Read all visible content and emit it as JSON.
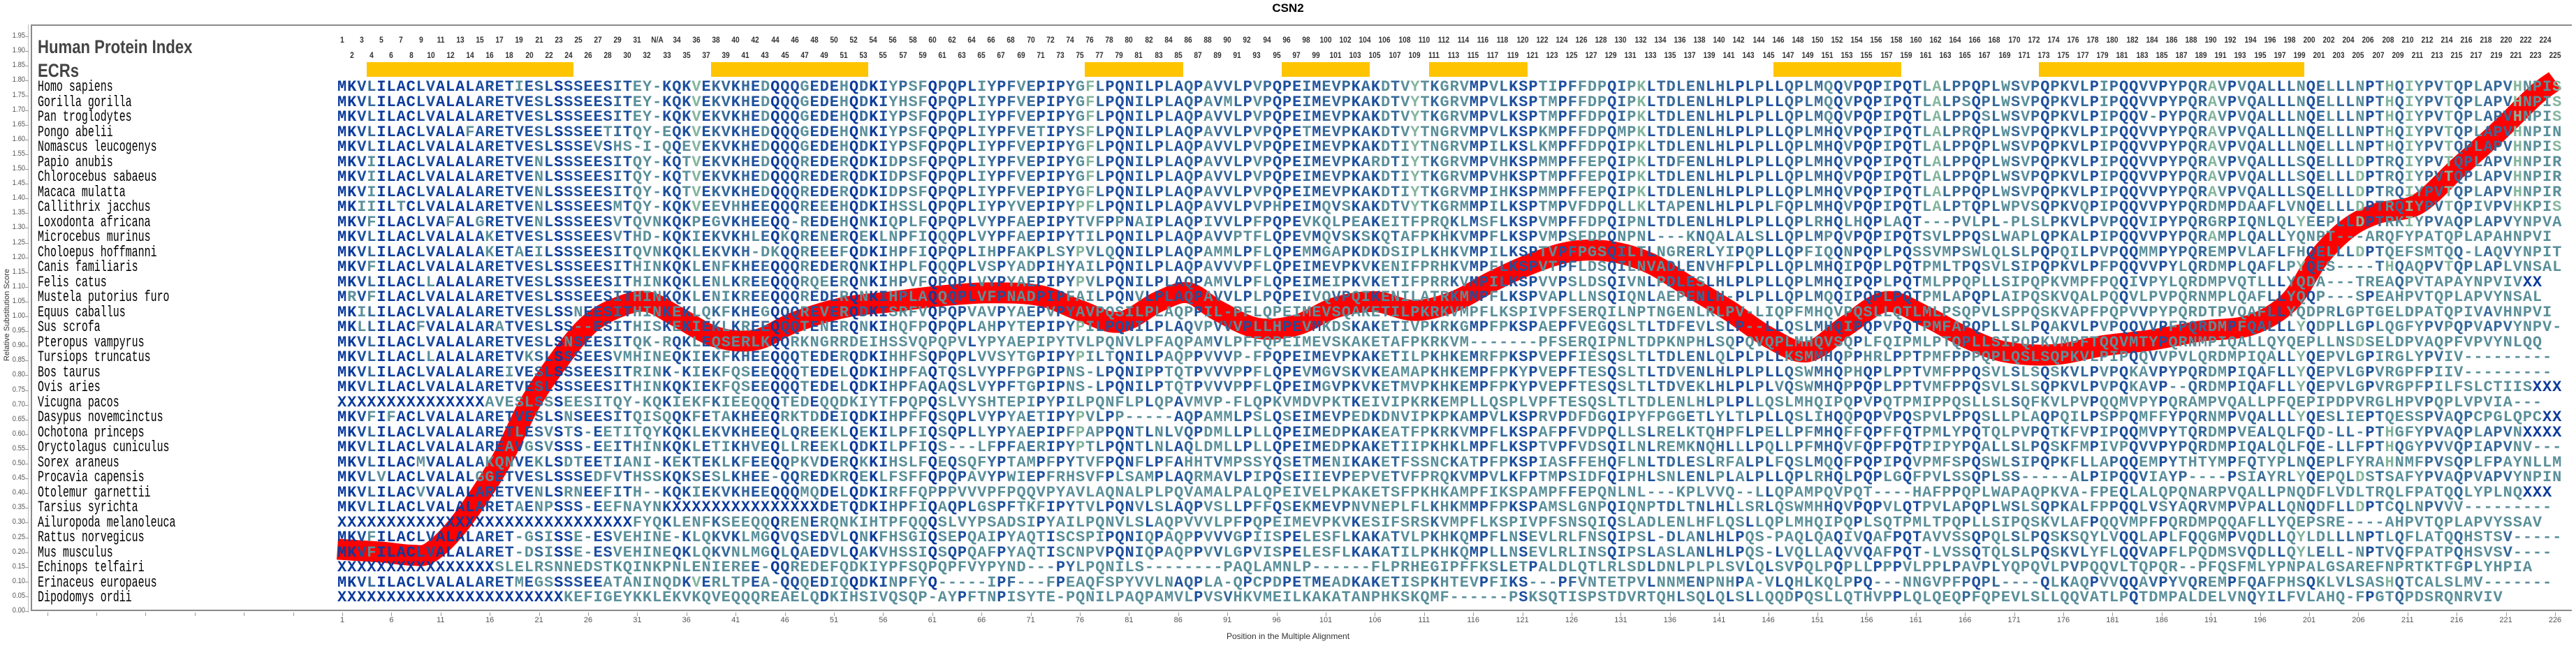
{
  "chart_data": {
    "type": "line",
    "title": "CSN2",
    "xlabel": "Position in the Multiple Alignment",
    "ylabel": "Relative Substitution Score",
    "ylim": [
      0,
      1.95
    ],
    "xlim": [
      1,
      226
    ],
    "grid": false,
    "yticks": [
      "0.00",
      "0.05",
      "0.10",
      "0.15",
      "0.20",
      "0.25",
      "0.30",
      "0.35",
      "0.40",
      "0.45",
      "0.50",
      "0.55",
      "0.60",
      "0.65",
      "0.70",
      "0.75",
      "0.80",
      "0.85",
      "0.90",
      "0.95",
      "1.00",
      "1.05",
      "1.10",
      "1.15",
      "1.20",
      "1.25",
      "1.30",
      "1.35",
      "1.40",
      "1.45",
      "1.50",
      "1.55",
      "1.60",
      "1.65",
      "1.70",
      "1.75",
      "1.80",
      "1.85",
      "1.90",
      "1.95"
    ],
    "xticks": [
      "1",
      "6",
      "11",
      "16",
      "21",
      "26",
      "31",
      "36",
      "41",
      "46",
      "51",
      "56",
      "61",
      "66",
      "71",
      "76",
      "81",
      "86",
      "91",
      "96",
      "101",
      "106",
      "111",
      "116",
      "121",
      "126",
      "131",
      "136",
      "141",
      "146",
      "151",
      "156",
      "161",
      "166",
      "171",
      "176",
      "181",
      "186",
      "191",
      "196",
      "201",
      "206",
      "211",
      "216",
      "221",
      "226"
    ],
    "series": [
      {
        "name": "Relative Substitution Score",
        "color": "#ff0000",
        "x": [
          1,
          5,
          8,
          10,
          13,
          17,
          20,
          23,
          26,
          29,
          32,
          35,
          39,
          43,
          47,
          52,
          57,
          62,
          67,
          72,
          76,
          80,
          84,
          87,
          90,
          94,
          98,
          102,
          106,
          110,
          114,
          118,
          122,
          126,
          130,
          134,
          138,
          142,
          146,
          150,
          154,
          158,
          162,
          166,
          170,
          175,
          180,
          185,
          190,
          195,
          199,
          202,
          205,
          208,
          212,
          216,
          220,
          224,
          226
        ],
        "y": [
          0.21,
          0.2,
          0.19,
          0.2,
          0.3,
          0.5,
          0.7,
          0.85,
          0.97,
          1.03,
          1.05,
          1.0,
          0.93,
          0.92,
          0.98,
          1.03,
          1.05,
          1.07,
          1.08,
          1.07,
          1.02,
          0.98,
          1.05,
          1.08,
          1.02,
          0.96,
          0.97,
          1.03,
          1.05,
          1.02,
          1.05,
          1.12,
          1.18,
          1.22,
          1.22,
          1.18,
          1.1,
          1.02,
          0.93,
          0.88,
          0.97,
          1.05,
          1.0,
          0.93,
          0.88,
          0.87,
          0.9,
          0.92,
          0.95,
          0.97,
          1.05,
          1.2,
          1.3,
          1.35,
          1.38,
          1.5,
          1.62,
          1.75,
          1.8
        ]
      }
    ]
  },
  "header": {
    "protein_index_label": "Human Protein Index",
    "ecr_label": "ECRs",
    "index_labels": [
      "1",
      "2",
      "3",
      "4",
      "5",
      "6",
      "7",
      "8",
      "9",
      "10",
      "11",
      "12",
      "13",
      "14",
      "15",
      "16",
      "17",
      "18",
      "19",
      "20",
      "21",
      "22",
      "23",
      "24",
      "25",
      "26",
      "27",
      "28",
      "29",
      "30",
      "31",
      "32",
      "N/A",
      "33",
      "34",
      "35",
      "36",
      "37",
      "38",
      "39",
      "40",
      "41",
      "42",
      "43",
      "44",
      "45",
      "46",
      "47",
      "48",
      "49",
      "50",
      "51",
      "52",
      "53",
      "54",
      "55",
      "56",
      "57",
      "58",
      "59",
      "60",
      "61",
      "62",
      "63",
      "64",
      "65",
      "66",
      "67",
      "68",
      "69",
      "70",
      "71",
      "72",
      "73",
      "74",
      "75",
      "76",
      "77",
      "78",
      "79",
      "80",
      "81",
      "82",
      "83",
      "84",
      "85",
      "86",
      "87",
      "88",
      "89",
      "90",
      "91",
      "92",
      "93",
      "94",
      "95",
      "96",
      "97",
      "98",
      "99",
      "100",
      "101",
      "102",
      "103",
      "104",
      "105",
      "106",
      "107",
      "108",
      "109",
      "110",
      "111",
      "112",
      "113",
      "114",
      "115",
      "116",
      "117",
      "118",
      "119",
      "120",
      "121",
      "122",
      "123",
      "124",
      "125",
      "126",
      "127",
      "128",
      "129",
      "130",
      "131",
      "132",
      "133",
      "134",
      "135",
      "136",
      "137",
      "138",
      "139",
      "140",
      "141",
      "142",
      "143",
      "144",
      "145",
      "146",
      "147",
      "148",
      "149",
      "150",
      "151",
      "152",
      "153",
      "154",
      "155",
      "156",
      "157",
      "158",
      "159",
      "160",
      "161",
      "162",
      "163",
      "164",
      "165",
      "166",
      "167",
      "168",
      "169",
      "170",
      "171",
      "172",
      "173",
      "174",
      "175",
      "176",
      "177",
      "178",
      "179",
      "180",
      "181",
      "182",
      "183",
      "184",
      "185",
      "186",
      "187",
      "188",
      "189",
      "190",
      "191",
      "192",
      "193",
      "194",
      "195",
      "196",
      "197",
      "198",
      "199",
      "200",
      "201",
      "202",
      "203",
      "204",
      "205",
      "206",
      "207",
      "208",
      "209",
      "210",
      "211",
      "212",
      "213",
      "214",
      "215",
      "216",
      "217",
      "218",
      "219",
      "220",
      "221",
      "222",
      "223",
      "224",
      "225"
    ],
    "ecrs": [
      [
        4,
        24
      ],
      [
        39,
        54
      ],
      [
        77,
        86
      ],
      [
        97,
        105
      ],
      [
        112,
        121
      ],
      [
        147,
        159
      ],
      [
        174,
        200
      ]
    ],
    "ecr_color": "#ffc400"
  },
  "alignment": [
    {
      "species": "Homo sapiens",
      "seq": "MKVLILACLVALALARETIESLSSSEESITEY-KQKVEKVKHEDQQQGEDEHQDKIYPSFQPQPLIYPFVEPIPYGFLPQNILPLAQPAVVLPVPQPEIMEVPKAKDTVYTKGRVMPVLKSPTIPFFDPQIPKLTDLENLHLPLPLLQPLMQQVPQPIPQTLALPPQPLWSVPQPKVLPIPQQVVPYPQRAVPVQALLLNQELLLNPTHQIYPVTQPLAPVHNPIS"
    },
    {
      "species": "Gorilla gorilla",
      "seq": "MKVLILACLVALALARETVESLSSSEESITEY-KQKVEKVKHEDQQQGEDEHQDKIYHSFQPQPLIYPFVEPIPYGFLPQNILPLAQPAVMLPVPQPEIMEVPKAKDTVYTKGRVMPVLKSPTMPFFDPQIPKLTDLENLHLPLPLLQPLMQQVPQPIPQTLALPSQPLWSVPQPKVLPIPQQVVPYPQRAVPVQALLLNQELLLNPTHQIYPVTQPLAPVHNPIS"
    },
    {
      "species": "Pan troglodytes",
      "seq": "MKVLILACLVALALARETVESLSSSEESITEY-KQKVEKVKHEDQQQGEDEHQDKIYPSFQPQPLIYPFVEPIPYGFLPQNILPLAQPAVVLPVPQPEIMEVPKAKDTVYTKGRVMPVLKSPTMPFFDPQIPKLTDLENLHLPLPLLQPLMQQVPQPIPQTLALPPQSLWSVPQPKVLPIPQQV-PYPQRAVPVQALLLNQELLLNPTHQIYPVTQPLAPVHNPIS"
    },
    {
      "species": "Pongo abelii",
      "seq": "MKVLILACLVALAFARETVESLSSSEETITQY-EQKVEKVKHEDQQQGEDEHQNKIYPSFQPQPLIYPFVETIPYSFLPQNILPLAQPAVVLPVPQPETMEVPKAKDTVYTNGRVMPVLKSPKMPFFDPQMPKLTDLENLHLPLPLLQPLMHQVPQPIPQTLALPRQPLWSVPQPKVLPIPQQVVPYPQRAVPVQALLLNQELLLNPTHQIYPVTQPLAPVHNPIN"
    },
    {
      "species": "Nomascus leucogenys",
      "seq": "MKVLILACLVALALARETVESLSSSEVSHS-I-QQEVEKVKHEDQQQGEDEHQDKIYPSFQPQPLIYPFVEPIPYGFLPQNILPLAQPAVVLPVPQPEIMEVPKAKDTIYTNGRVMPILKSLKMPFFDPQIPKLTDLENLHLPLPLLQPLMHQVPQPIPQTLALPPQPLWSVPQPKVLPIPQQVVPYPQRAVPVQALLLNQELLLNPTHQIYPVTQPLAPVHNPIS"
    },
    {
      "species": "Papio anubis",
      "seq": "MKVIILACLVALALARETVENLSSSEESITQY-KQTVEKVKHEDQQQREDERQDKIDPSFQPQPLIYPFVEPIPYGFLPQNILPLAQPAVVLPVPQPEIMEVPKARDTIYTKGRVMPVHKSPMMPFFEPQIPKLTDFENLHLPLPLLQPLMHQVPQPIPQTLALPPQPLWSVPQPKVLPIPQQVVPYPQRAVPVQALLLSQELLLDPTRQIYPVTQPLAPVHNPIR"
    },
    {
      "species": "Chlorocebus sabaeus",
      "seq": "MKVIILACLVALALARETVENLSSSEESITQY-KQTVEKVKHEDQQQREDERQDKIDPSFQPQPLIYPFVEPIPYGFLPQNILPLAQPAVVLPVPQPEIMEVPKAKDTIYTKGRVMPVHKSPTMPFFEPQIPKLTDLENLHLPLPLLQPLMHQVPQPIPQTLALPPQPLWSVPQPKVLPIPQQVVPYPQRAVPVQALLLSQELLLDPTRQIYPVTQPLAPVHNPIR"
    },
    {
      "species": "Macaca mulatta",
      "seq": "MKVIILACLVALALARETVENLSSSEESITQY-KQTVEKVKHEDQQQREDERQDKIDPSFQPQPLIYPFVEPIPYGFLPQNILPLAQPAVVLPVPQPEIMEVPKAKDTIYTKGRVMPIHKSPMMPFFEPQIPKLTDLENLHLPLPLLQPLMHQVPQPIPQTLALPPQPLWSVPQPKVLPIPQQVVPYPQRAVPVQALLLSQELLLDPTRQIYPVTQPLAPVHNPIR"
    },
    {
      "species": "Callithrix jacchus",
      "seq": "MKIIILTCLVALALARETVENLSSSEESMTQY-KQKVEEVHHEEQQQREEEHQDKIHSSLQPQPLIYPYVEPIPYPFLPQNILPLAQPAVVLPVPHPEIMQVSKAKDTVYTKGRMMPILKSPTMPVFDPQLLKLTAPENLHLPLPLFQPLMHQVPQPIPQTLALPTQPLWPVSQPKVQPIPQQVVPYPQRDMPDAAFLVNQELLLDPTRQIYPVTQPIVPVHKPIS"
    },
    {
      "species": "Loxodonta africana",
      "seq": "MKVFILACLVAFALGRETVENLSSSEESVTQVNKQKPEGVKHEEQQ-REDEHQNKIQPLFQPQPLVYPFAEPIPYTVFPPNAIPLAQPIVVLPFPQPEVKQLPEAKEITFPRQKLMSFLKSPVMPFFDPQIPNLTDLENLHLPLPLLQPLRHQLHQPLAQT---PVLPL-PLSLPKVLPVPQQVIPYPQRGRPIQNLQLYEEPLLDPTRKIYPVAQPLAPVYNPVA"
    },
    {
      "species": "Microcebus murinus",
      "seq": "MKVLILACLVALALAKETVESLSSSEESVTHD-KQKIEKVKHLEQKQRENERQEKLNPFIQQQPLVYPFAEPIPYTILPQNILPLAQPAVVPTFLQPEVMQVSKSKQTAFPKHKVMPFLKSPVMPSFDPQNPNL---KNQALALSLLQPLMPQVPQPIPQTSVLPPQSLWAPLQPKALPIPQQVVPYPQRAMPLQALLYQNPT---ARQFYPATQPLAPAHNPVI"
    },
    {
      "species": "Choloepus hoffmanni",
      "seq": "MKVLILACLVALALAKETAEILSSSEESITQVNKQKLEKVKH-DKQQREEEFQDKIHPFIQPQPLIHPFAKPLSYPVLQQNILPLAQPAMMLPFLQPEMMGAPKDKDSIPLKHKVMPILKSPTVPFPGSQILTLNGRERLYIPQPLLQPFIQQNPQPLPQSSVMPSWLQLSLPQPQILPVPQQMMPYPQREMPVLAFLFHQELLLDPTQEFSMTQQ-LAQVYNPIT"
    },
    {
      "species": "Canis familiaris",
      "seq": "MKVFILACLVALALARETVESLSSSEESITHINKQKLENFKHEEQQQREDERQNKIHPLFQQQPLVSPYADPIHYAILPQNILPLAQPAVVVPFLQPEIMEVPKVKENIFPRHKVMPFLKSPVTPFLDSQILNVADLENVHFPLPLLQPLMHQIPQPLPQTPMLTPQSVLSIPQPKVLPFPQQVVPYLQRDMPLQAFLPYQES----THQAQPVTQPLAPLVNSAL"
    },
    {
      "species": "Felis catus",
      "seq": "MKVLILACLLALALARETVESLSSSEESITHINKQKLENLKREEQQQRQEERQNKIHPVFQPQPLVYPYAEPIPYPVLPQNILPLAQPAMVLPFLQPEIMEIPKVKETIFPRRKVMPILKSPVVPSLDSQIVNLPDLESLHLPLPLLQPLMHQIPQPLPQTMLPPQPLLSIPQPKVMPFPQQIVPYLQRDMPVQTLLLYQDA---TREAQPVTAPAYNPVIVXX"
    },
    {
      "species": "Mustela putorius furo",
      "seq": "MRVFILACLVALALARETVESLSSSEESITHINKQKLENIKREEQQQREDERQNKIHPLAQQQPLVFPNADPIPFAILPQNVLPLAQPAVVLPLPQPEIVQVPQIKENILATRKMMPFLKSPVAPLLNSQIQNLAEPENLH-PLPLLQPLMQQIPQPLPQTPMLAPQPLAIPQSKVQALPQQVLPVPQRNMPLQAFLLYQQP---SPEAHPVTQPLAPVYNSAL"
    },
    {
      "species": "Equus caballus",
      "seq": "MKILILACLVALALARETVESLSSNEESITHINKEKLQKFKHEGQQQREVERQDKISRFVQPQPVAVPYAEPVPYAVPQSILPLAQPPIL-PFLQPEIMEVSQAKETILPKRKVMPFLKSPIVPFSERQILNPTNGENLRLPV-LIQPFMHQVPQSLLQTLMLPSQPVLSPPQSKVAPFPQPVVPYPQRDTPVQAFLLYQDPRLGPTGELDPATQPIVAVHNPVI"
    },
    {
      "species": "Sus scrofa",
      "seq": "MKLLILACFVALALARATVESLSS--ESITHISKEKIEKLKREEQQQTENERQNKIHQFPQPQPLAHPYTEPIPYPILPQNILPLAQVPVVVPLLHPEVMKDSKAKETIVPKRKGMPFPKSPAEPFVEGQSLTLTDFEVLSLP--LLQSLMHQIPQPVPQTPMFAPQPLLSLPQAKVLPVPQQVVPFPQRDMPFQALLLYQDPLLGPLQGFYPVPQPVAPVYNPV-"
    },
    {
      "species": "Pteropus vampyrus",
      "seq": "MKVLILACLVALALARETVESLSNSEESITQK-RQKLEQSERLKQQRKNGRRDEIHSSVQPQPVLYPYAEPIPYTVLPQNVLPFAQPAMVLPFFQPEIMEVSKAKETAFPKRKVM-------PFSERQIPNLTDPKNPHLSQPQVQPLMHQVSQPLFQIPMLPTQPLLSIPQPKVMPFTQQVMTYPQRNMPIQALLQYQEPLLNSDSELDPVAQPFVPVYNLQQ"
    },
    {
      "species": "Tursiops truncatus",
      "seq": "MKVLILACLLALALARETVKSLSSSEESVMHINEQKIEKFKHEEQQQTEDERQDKIHHFSQPQPLVVSYTGPIPYPILTQNILPAQPPVVVP-FPQPEIMEVPKAKETILPKHKEMRFPKSPVEPFIESQSLTLTDLENLQLPLPLLKSMMHQPPHRLPPTPMFPPPQPLQSLSQPKVLPIPQQVVPVLQRDMPIQALLYQEPVLGPIRGLYPVIV---------"
    },
    {
      "species": "Bos taurus",
      "seq": "MKVLILACLVALALAREIVESLSSSEESITRINK-KIEKFQSEEQQQTEDELQDKIHPFAQTQSLVYPFPGPIPNS-LPQNIPPTQTPVVVPPFLQPEVMGVSKVKEAMAPKHKEMPFPKYPVEPFTESQSLTLTDVENLHLPLPLLQSWMHQPHQPLPPTVMFPPQSVLSLSQSKVLPVPQKAVPYPQRDMPIQAFLLYQEPVLGPVRGPFPIIV---------"
    },
    {
      "species": "Ovis aries",
      "seq": "MKVLILACLVALALARETVESLSSSEESITHINKQKIEKFQSEEQQQTEDELQDKIHPFAQAQSLVYPFTGPIPNS-LPQNILPTQTPVVVPPFLQPEIMGVPKVKETMVPKHKEMPFPKYPVEPFTESQSLTLTDVEKLHLPLPLVQSWMHQPPQPLPPTVMFPPQSVLSLSQPKVLPVPQKAVP--QRDMPIQAFLLYQEPVLGPVRGPFPILFSLCTIISXXX"
    },
    {
      "species": "Vicugna pacos",
      "seq": "XXXXXXXXXXXXXXXAVESLSSSEESITQY-KQKIEKFKIEEQQQTEDEQQDKIYTFPQPQSLVYSHTEPIPYPILPQNFLPLQPAVMVP-FLQPKVMDVPKTKEIVIPKRKEMPLLQSPLVPFTESQSLTLTDLENLHLPLPLLQSLMHQIPQPVPQTPMIPPQSLLSLSQFKVLPVPQQMVPYPQRAMPVQALLPFQEPIPDPVRGLHPVPQPLVPVIA---"
    },
    {
      "species": "Dasypus novemcinctus",
      "seq": "MKVFIFACLVALALARETVESLSNSEESITQISQQKFETAKHEEQRKTDDEIQDKIHPFFQSQPLVYPYAETIPYPVLPP-----AQPAMMLPSLQSEIMEVPEDKDNVIPKPKAMPVLKSPRVPDFDGQIPYFPGGETLYLTLPLLQSLIHQQPQPVPQSPVLPPQSLLPLAQPQILPSPPQMFFYPQRNMPVQALLLYQESLIEPTQESSPVAQPCPGLQPCXX"
    },
    {
      "species": "Ochotona princeps",
      "seq": "MKVLILACLVALALARETLESVSTS-EETITQYKQKLEKVKHEEQLQREEKLQEKILPFIQSQPLLYPYAEPIPFPAPPQNTLNLVQPDMLLPLLQPEIMEDPKAKEATFPKRKVMPFLKSPAFPFVDPQLLSLRELKTQHPFLPELLPFMHQFFQPFFQTPMLYPQTQLPVPQTKFVPIPQQMVPYTQRDMPVEALQLFQD-LL-PTHGFYPVAQPLAPVNXXXX"
    },
    {
      "species": "Oryctolagus cuniculus",
      "seq": "MKVLILACLVALALAREAVGSVSSS-EEITHINKQKLETIKHVEQLLREEKLQDKILPFIQS---LFPFAERIPYPTLPQNTLNLAQLDMLLPLLQPEIMEDPKAKETIIPKHKLMPFLKSPTVPFVDSQILNLREMKNQHLLLPQLLPFMHQVFQPFPQTPIPYPQALLSLPQSKFMPIVPQVVPYPQRDMPIQALQLFQE-LLFPTHQGYPVVQPIAPVNV---"
    },
    {
      "species": "Sorex araneus",
      "seq": "MKVLILACMVALALAKQNVEKLSDTEETIANI-KEKTEKLKFEEQQPKVDERQKKIHSLFQEQSQFYPTAMPFPYTVFPQNFLPFAHHTVMPSSYQSETMENIKAKETFSSNCKATPFPKSPIASFFEHQFLNLTDLESLRFALPLFQSLMQQFPQPIPQVPMFSPQSWLSIPQPKFLLAPQQEMPYTHTYMPFQTYPLNQEPLFYRAHNMFPVSQPLFPAYNLLM"
    },
    {
      "species": "Procavia capensis",
      "seq": "MKVLVLACLVALALGGETVESLSSSEDFVTHSSKQKSESLKHEE-QQREDKRQEKLFSFFQPQPAVYPWIEPFRHSVFPLSAMPLAQRMAVLPIPQSEIIEVPEPVETVFPRQKVMPVLKFPTMPSIDFQIPHLSNLENLPLALPLLQPLRHQLPQPLGQFPVLSSQPLSS-----ALPIPQQVIAYP----PSIAYRLYQEPQLDSTSAFYPVAQPVAPVYNPIN"
    },
    {
      "species": "Otolemur garnettii",
      "seq": "MKVLILACVVALALARETVENLSRNEEFITH--KQKIEKVKHEEQQQMQDELQDKIRFFQPPPVVVPFPQQVPYAVLAQNALPLPQVAMALPALQPEIVELPKAKETSFPKHKAMPFIKSPAMPFFEPQNLNL---KPLVVQ--LLQPAMPQVPQT----HAFPPQPLWAPAQPKVA-FPEQLALQPQNARPVQALLPNQDFLVDLTRQLFPATQQLYPLNQXXX"
    },
    {
      "species": "Tarsius syrichta",
      "seq": "MKVLILACLVALALARETAENPSSS-EEFNAYNKXXXXXXXXXXXXXXXDETQDKIHPFIQAQPLGSPFTKFIPYTVLPQNVLSLAQPVSLLPFFQSEKMEVPNVNEPLFLKHKMMPFPKSPAMSLGNPQIQNPTDLTNLHLLSRLQSWMHHQVPQPVLQTPVLAPQPLWSLSQPKALFPPQQLVSYAQRVMPVPALLQNQDFLLDPTCQLNPVVV---------"
    },
    {
      "species": "Ailuropoda melanoleuca",
      "seq": "XXXXXXXXXXXXXXXXXXXXXXXXXXXXXXFYQKLENFKSEEQQQRENERQNKIHTPFQQQSLVYPSADSIPYAILPQNVLSLAQPVVVLPFPQPEIMEVPKVKESIFSRSKVMPFLKSPIVPFSNSQIQSLADLENLHFLQSLLQPLMHQIPQPLSQTPMLTPQPLLSIPQSKVLAFPQQVMPFPQRDMPQQAFLLYQEPSRE----AHPVTQPLAPVYSSAV"
    },
    {
      "species": "Rattus norvegicus",
      "seq": "MKVFILACLVALALARET-GSISSE-ESVEHINE-KLQKVKLMGQVQSEDVLQNKFHSGIQSEPQAIPYAQTISCSPIPQNIQPAQPPVVVGPIISPELESFLKAKATVLPKHKQMPFLNSEVLRLFNSQIPSL-DLANLHLPQS-PAQLQAQIVQAFPQTAVVSSQPQLSLPQSKSQYLVQQLAPLFQQGMPVQDLLQYLDLLLNPTLQFLATQQHSTSV-----"
    },
    {
      "species": "Mus musculus",
      "seq": "MKVFILACLVALALARET-DSISSE-ESVEHINEQKLQKVNLMGQLQAEDVLQAKVHSSIQSQPQAFPYAQTISCNPVPQNIQPAQPPVVLGPVISPELESFLKAKATILPKHKQMPLLNSEVLRLINSQIPSLASLANLHLPQS-LVQLLAQVVQAFPQT-LVSSQTQLSLPQSKVLYFLQQVAPFLPQDMSVQDLLQYLELL-NPTVQFPATPQHSVSV----"
    },
    {
      "species": "Echinops telfairi",
      "seq": "XXXXXXXXXXXXXXXXSLELRSNNEDSTKQINKPNLENIEREE-QQREDEFQDKIYPFSQPQPFVYPYND---PYLPQNILS--------PAQLAMNLP------FLPRHEGIPFFKSLETPALDLQTLRLSDLDNLPLPLSVLQLSVPQLPQPLLPPPVLPPLPAVPLYQPQVLPVPQQVLTQPQR--PFQSFMLYPNPALGSAREFNPRTKTFGPLYHPIA"
    },
    {
      "species": "Erinaceus europaeus",
      "seq": "MKVLILACLVALALARETMEGSSSSEEATANINQDKVERLTPEA-QQQEDIQQDKINPFYQ-----IPF---FPEAQFSPYVVLNAQPLA-QPCPDPETMEADKAKETISPKHTEVPFIKS---PFVNTETPVLNNMENPNHPA-VLQHLKQLPPQ---NNGVPFPQPL----QLKAQPVVQQAVPYVQREMPFQAFPHSQKLVLSASHQTCALSLMV-------"
    },
    {
      "species": "Dipodomys ordii",
      "seq": "XXXXXXXXXXXXXXXXXXXXXXXKEFIGEYKKLEKVKQVEQQQREAELQDKIHSIVQSQP-AYPFTNPISYTE-PQNILPAQPAMVLPVSVHKVMEILKAKATANPHKSKQMF------PSKSQTISPSTDVRTQHLSQLQLSLLQQDPQSLLQTHVPPLQLQEQPFQPEVLSLLQQVATLPQTDMPALDELVNQYILFVLAHQ-FPGTQPDSRQNRVIV"
    }
  ],
  "conservation_colors": [
    "#0b3a9c",
    "#1d4f9e",
    "#36699a",
    "#5a8f9a",
    "#83b59d"
  ]
}
